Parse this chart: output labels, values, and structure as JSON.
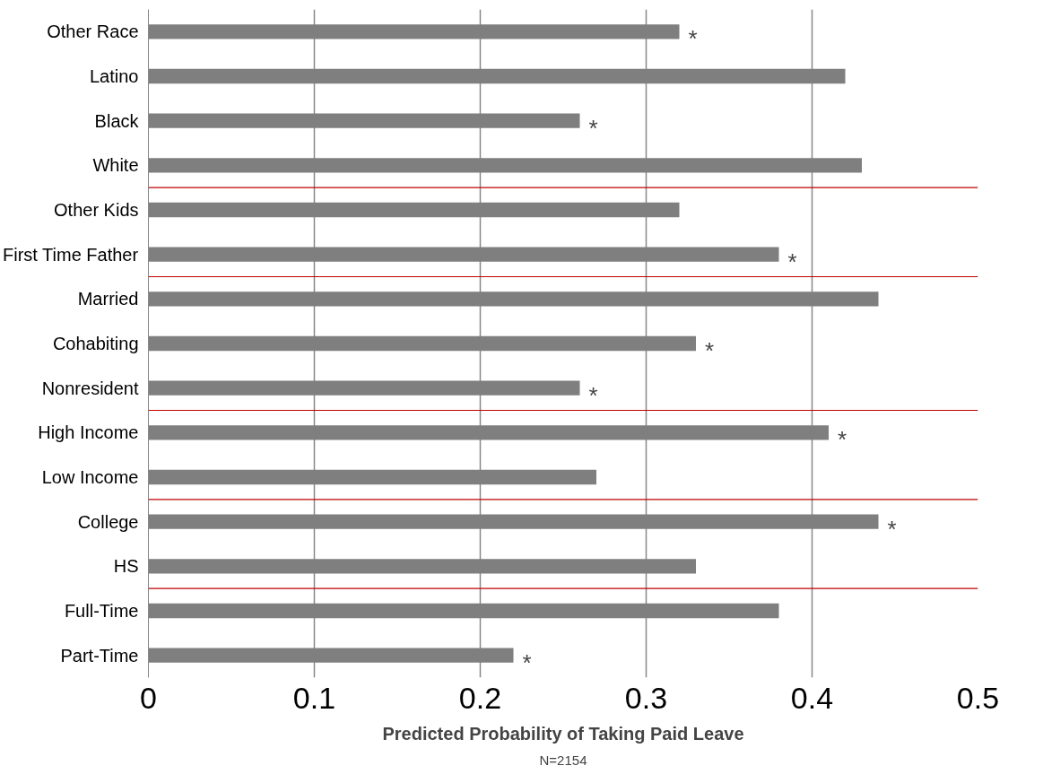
{
  "chart_data": {
    "type": "bar",
    "orientation": "horizontal",
    "xlabel": "Predicted Probability of Taking Paid Leave",
    "categories": [
      "Other Race",
      "Latino",
      "Black",
      "White",
      "Other Kids",
      "First Time Father",
      "Married",
      "Cohabiting",
      "Nonresident",
      "High Income",
      "Low Income",
      "College",
      "HS",
      "Full-Time",
      "Part-Time"
    ],
    "values": [
      0.32,
      0.42,
      0.26,
      0.43,
      0.32,
      0.38,
      0.44,
      0.33,
      0.26,
      0.41,
      0.27,
      0.44,
      0.33,
      0.38,
      0.22
    ],
    "value_labels": [
      "*",
      null,
      "*",
      null,
      null,
      "*",
      null,
      "*",
      "*",
      "*",
      null,
      "*",
      null,
      null,
      "*"
    ],
    "color": "#7f7f7f",
    "xlim": [
      0,
      0.5
    ],
    "xticks": [
      0,
      0.1,
      0.2,
      0.3,
      0.4,
      0.5
    ],
    "grid": "x",
    "annotations": [
      "N=2154"
    ]
  }
}
